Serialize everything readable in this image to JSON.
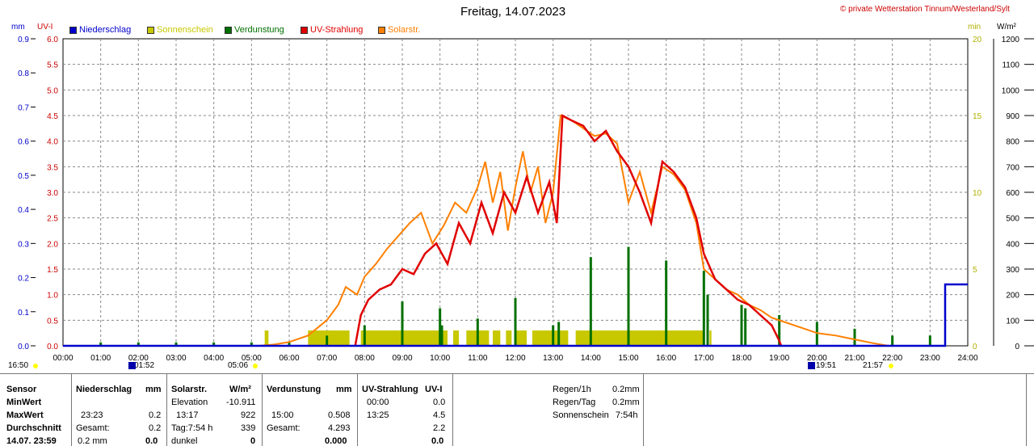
{
  "chart_data": {
    "type": "line",
    "title": "Freitag, 14.07.2023",
    "copyright": "© private Wetterstation Tinnum/Westerland/Sylt",
    "legend": [
      {
        "name": "Niederschlag",
        "color": "#0000cc"
      },
      {
        "name": "Sonnenschein",
        "color": "#c8c800"
      },
      {
        "name": "Verdunstung",
        "color": "#007000"
      },
      {
        "name": "UV-Strahlung",
        "color": "#e00000"
      },
      {
        "name": "Solarstr.",
        "color": "#ff8000"
      }
    ],
    "axes": {
      "mm": {
        "unit": "mm",
        "min": 0,
        "max": 0.9,
        "ticks": [
          "0.0",
          "0.1",
          "0.2",
          "0.3",
          "0.4",
          "0.5",
          "0.6",
          "0.7",
          "0.8",
          "0.9"
        ],
        "color": "#0000cc"
      },
      "uvi": {
        "unit": "UV-I",
        "min": 0,
        "max": 6,
        "ticks": [
          "0.0",
          "0.5",
          "1.0",
          "1.5",
          "2.0",
          "2.5",
          "3.0",
          "3.5",
          "4.0",
          "4.5",
          "5.0",
          "5.5",
          "6.0"
        ],
        "color": "#cc0000"
      },
      "min": {
        "unit": "min",
        "min": 0,
        "max": 20,
        "ticks": [
          "0",
          "5",
          "10",
          "15",
          "20"
        ],
        "color": "#b0b000"
      },
      "wm2": {
        "unit": "W/m²",
        "min": 0,
        "max": 1200,
        "ticks": [
          "0",
          "100",
          "200",
          "300",
          "400",
          "500",
          "600",
          "700",
          "800",
          "900",
          "1000",
          "1100",
          "1200"
        ],
        "color": "#000000"
      },
      "x": {
        "min": 0,
        "max": 24,
        "ticks": [
          "00:00",
          "01:00",
          "02:00",
          "03:00",
          "04:00",
          "05:00",
          "06:00",
          "07:00",
          "08:00",
          "09:00",
          "10:00",
          "11:00",
          "12:00",
          "13:00",
          "14:00",
          "15:00",
          "16:00",
          "17:00",
          "18:00",
          "19:00",
          "20:00",
          "21:00",
          "22:00",
          "23:00",
          "24:00"
        ]
      }
    },
    "grid": true,
    "solar_wm2": [
      [
        5.2,
        0
      ],
      [
        5.6,
        5
      ],
      [
        6.0,
        15
      ],
      [
        6.5,
        40
      ],
      [
        7.0,
        100
      ],
      [
        7.3,
        160
      ],
      [
        7.5,
        230
      ],
      [
        7.8,
        200
      ],
      [
        8.0,
        270
      ],
      [
        8.3,
        320
      ],
      [
        8.6,
        380
      ],
      [
        8.9,
        430
      ],
      [
        9.2,
        480
      ],
      [
        9.5,
        520
      ],
      [
        9.8,
        400
      ],
      [
        10.1,
        470
      ],
      [
        10.4,
        560
      ],
      [
        10.7,
        520
      ],
      [
        11.0,
        620
      ],
      [
        11.2,
        720
      ],
      [
        11.4,
        560
      ],
      [
        11.6,
        680
      ],
      [
        11.8,
        450
      ],
      [
        12.0,
        620
      ],
      [
        12.2,
        760
      ],
      [
        12.4,
        600
      ],
      [
        12.6,
        700
      ],
      [
        12.8,
        480
      ],
      [
        13.0,
        600
      ],
      [
        13.2,
        900
      ],
      [
        13.5,
        880
      ],
      [
        13.8,
        850
      ],
      [
        14.1,
        820
      ],
      [
        14.4,
        830
      ],
      [
        14.7,
        790
      ],
      [
        15.0,
        560
      ],
      [
        15.3,
        680
      ],
      [
        15.6,
        520
      ],
      [
        15.9,
        700
      ],
      [
        16.2,
        670
      ],
      [
        16.5,
        610
      ],
      [
        16.8,
        480
      ],
      [
        17.0,
        300
      ],
      [
        17.3,
        260
      ],
      [
        17.6,
        220
      ],
      [
        17.9,
        200
      ],
      [
        18.2,
        160
      ],
      [
        18.5,
        140
      ],
      [
        18.8,
        110
      ],
      [
        19.2,
        90
      ],
      [
        19.6,
        70
      ],
      [
        20.0,
        50
      ],
      [
        20.5,
        40
      ],
      [
        21.0,
        25
      ],
      [
        21.5,
        10
      ],
      [
        21.9,
        0
      ]
    ],
    "uv_index": [
      [
        7.75,
        0
      ],
      [
        7.9,
        0.6
      ],
      [
        8.1,
        0.9
      ],
      [
        8.4,
        1.1
      ],
      [
        8.7,
        1.2
      ],
      [
        9.0,
        1.5
      ],
      [
        9.3,
        1.4
      ],
      [
        9.6,
        1.8
      ],
      [
        9.9,
        2.0
      ],
      [
        10.2,
        1.6
      ],
      [
        10.5,
        2.4
      ],
      [
        10.8,
        2.0
      ],
      [
        11.1,
        2.8
      ],
      [
        11.4,
        2.2
      ],
      [
        11.7,
        3.0
      ],
      [
        12.0,
        2.6
      ],
      [
        12.3,
        3.3
      ],
      [
        12.6,
        2.6
      ],
      [
        12.9,
        3.2
      ],
      [
        13.1,
        2.4
      ],
      [
        13.25,
        4.5
      ],
      [
        13.5,
        4.4
      ],
      [
        13.8,
        4.3
      ],
      [
        14.1,
        4.0
      ],
      [
        14.4,
        4.2
      ],
      [
        14.7,
        3.8
      ],
      [
        15.0,
        3.5
      ],
      [
        15.3,
        3.0
      ],
      [
        15.6,
        2.4
      ],
      [
        15.9,
        3.6
      ],
      [
        16.2,
        3.4
      ],
      [
        16.5,
        3.1
      ],
      [
        16.8,
        2.5
      ],
      [
        17.0,
        1.8
      ],
      [
        17.3,
        1.3
      ],
      [
        17.6,
        1.1
      ],
      [
        17.9,
        0.9
      ],
      [
        18.2,
        0.8
      ],
      [
        18.5,
        0.6
      ],
      [
        18.8,
        0.4
      ],
      [
        19.0,
        0.1
      ],
      [
        19.05,
        0
      ]
    ],
    "sunshine_blocks": [
      [
        5.35,
        5.45
      ],
      [
        6.5,
        7.6
      ],
      [
        7.9,
        10.2
      ],
      [
        10.35,
        10.5
      ],
      [
        10.7,
        11.3
      ],
      [
        11.4,
        11.6
      ],
      [
        11.75,
        11.9
      ],
      [
        12.0,
        12.3
      ],
      [
        12.45,
        13.4
      ],
      [
        13.6,
        17.0
      ],
      [
        17.15,
        17.2
      ]
    ],
    "sunshine_level_min": 1,
    "evaporation_bars": [
      [
        1.0,
        0.01
      ],
      [
        2.0,
        0.01
      ],
      [
        3.0,
        0.01
      ],
      [
        4.0,
        0.01
      ],
      [
        5.0,
        0.01
      ],
      [
        6.0,
        0.01
      ],
      [
        7.0,
        0.03
      ],
      [
        8.0,
        0.06
      ],
      [
        9.0,
        0.13
      ],
      [
        10.0,
        0.11
      ],
      [
        10.05,
        0.06
      ],
      [
        11.0,
        0.08
      ],
      [
        12.0,
        0.14
      ],
      [
        13.0,
        0.06
      ],
      [
        13.15,
        0.07
      ],
      [
        14.0,
        0.26
      ],
      [
        15.0,
        0.29
      ],
      [
        16.0,
        0.25
      ],
      [
        17.0,
        0.22
      ],
      [
        17.1,
        0.15
      ],
      [
        18.0,
        0.12
      ],
      [
        18.1,
        0.11
      ],
      [
        19.0,
        0.09
      ],
      [
        20.0,
        0.07
      ],
      [
        21.0,
        0.05
      ],
      [
        22.0,
        0.03
      ],
      [
        23.0,
        0.03
      ]
    ],
    "precipitation": [
      [
        0,
        0
      ],
      [
        23.4,
        0
      ],
      [
        23.4,
        0.18
      ],
      [
        24,
        0.18
      ]
    ]
  },
  "sun_events": {
    "sunrise_prev": "16:50",
    "moonset": "01:52",
    "sunrise": "05:06",
    "moonrise": "19:51",
    "sunset": "21:57"
  },
  "table": {
    "col_sensor": {
      "header": "Sensor",
      "rows": [
        "MinWert",
        "MaxWert",
        "Durchschnitt",
        "14.07. 23:59"
      ]
    },
    "col_niederschlag": {
      "header": "Niederschlag",
      "unit": "mm",
      "rows": [
        [
          "",
          ""
        ],
        [
          "23:23",
          "0.2"
        ],
        [
          "Gesamt:",
          "0.2"
        ],
        [
          "0.2 mm",
          "0.0"
        ]
      ]
    },
    "col_solar": {
      "header": "Solarstr.",
      "unit": "W/m²",
      "rows": [
        [
          "Elevation",
          "-10.911"
        ],
        [
          "13:17",
          "922"
        ],
        [
          "Tag:7:54 h",
          "339"
        ],
        [
          "dunkel",
          "0"
        ]
      ]
    },
    "col_verdunstung": {
      "header": "Verdunstung",
      "unit": "mm",
      "rows": [
        [
          "",
          ""
        ],
        [
          "15:00",
          "0.508"
        ],
        [
          "Gesamt:",
          "4.293"
        ],
        [
          "",
          "0.000"
        ]
      ]
    },
    "col_uv": {
      "header": "UV-Strahlung",
      "unit": "UV-I",
      "rows": [
        [
          "00:00",
          "0.0"
        ],
        [
          "13:25",
          "4.5"
        ],
        [
          "",
          "2.2"
        ],
        [
          "",
          "0.0"
        ]
      ]
    },
    "summary": [
      {
        "label": "Regen/1h",
        "value": "0.2mm"
      },
      {
        "label": "Regen/Tag",
        "value": "0.2mm"
      },
      {
        "label": "Sonnenschein",
        "value": "7:54h"
      }
    ]
  }
}
